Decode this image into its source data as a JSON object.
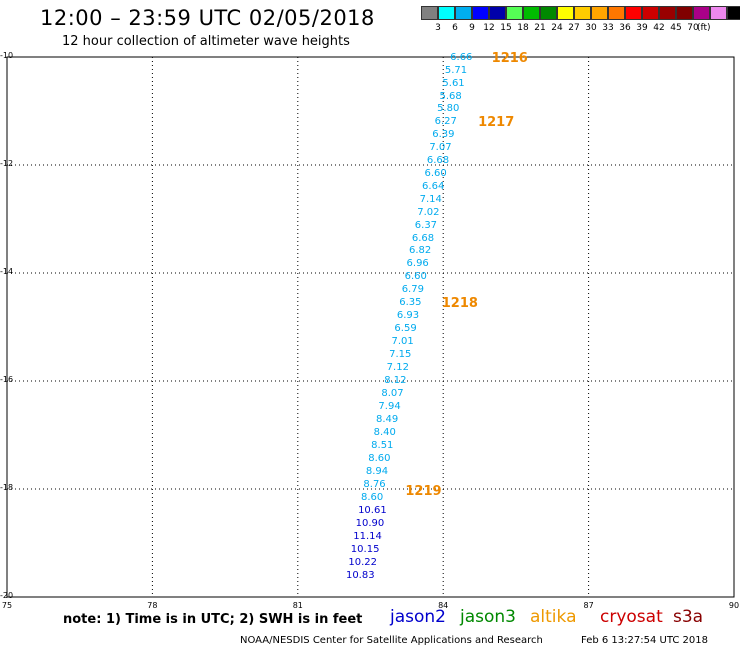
{
  "header": {
    "title": "12:00 – 23:59 UTC 02/05/2018",
    "subtitle": "12 hour collection of altimeter wave heights"
  },
  "colorbar": {
    "unit_label": "(ft)",
    "colors": [
      "#808080",
      "#00ffff",
      "#00aeef",
      "#0000ff",
      "#0000aa",
      "#55ff55",
      "#00bb00",
      "#008800",
      "#ffff00",
      "#ffcc00",
      "#ffa500",
      "#ff7700",
      "#ff0000",
      "#cc0000",
      "#990000",
      "#800000",
      "#aa0088",
      "#ee88ee",
      "#000000"
    ],
    "ticks": [
      "3",
      "6",
      "9",
      "12",
      "15",
      "18",
      "21",
      "24",
      "27",
      "30",
      "33",
      "36",
      "39",
      "42",
      "45",
      "70"
    ]
  },
  "axes": {
    "x_ticks": [
      "75",
      "78",
      "81",
      "84",
      "87",
      "90"
    ],
    "y_ticks": [
      "-10",
      "-12",
      "-14",
      "-16",
      "-18",
      "-20"
    ],
    "xlim": [
      75,
      90
    ],
    "ylim": [
      -20,
      -10
    ]
  },
  "track": {
    "color_light": "#00aaee",
    "color_dark": "#0000cc",
    "points": [
      {
        "lon": 84.35,
        "lat": -10.04,
        "swh": "6.66",
        "band": "light"
      },
      {
        "lon": 84.24,
        "lat": -10.27,
        "swh": "5.71",
        "band": "light"
      },
      {
        "lon": 84.19,
        "lat": -10.51,
        "swh": "5.61",
        "band": "light"
      },
      {
        "lon": 84.13,
        "lat": -10.75,
        "swh": "5.68",
        "band": "light"
      },
      {
        "lon": 84.08,
        "lat": -10.99,
        "swh": "5.80",
        "band": "light"
      },
      {
        "lon": 84.03,
        "lat": -11.22,
        "swh": "6.27",
        "band": "light"
      },
      {
        "lon": 83.98,
        "lat": -11.46,
        "swh": "6.39",
        "band": "light"
      },
      {
        "lon": 83.92,
        "lat": -11.7,
        "swh": "7.07",
        "band": "light"
      },
      {
        "lon": 83.87,
        "lat": -11.95,
        "swh": "6.68",
        "band": "light"
      },
      {
        "lon": 83.82,
        "lat": -12.18,
        "swh": "6.60",
        "band": "light"
      },
      {
        "lon": 83.77,
        "lat": -12.42,
        "swh": "6.64",
        "band": "light"
      },
      {
        "lon": 83.72,
        "lat": -12.66,
        "swh": "7.14",
        "band": "light"
      },
      {
        "lon": 83.67,
        "lat": -12.9,
        "swh": "7.02",
        "band": "light"
      },
      {
        "lon": 83.62,
        "lat": -13.14,
        "swh": "6.37",
        "band": "light"
      },
      {
        "lon": 83.56,
        "lat": -13.38,
        "swh": "6.68",
        "band": "light"
      },
      {
        "lon": 83.5,
        "lat": -13.62,
        "swh": "6.82",
        "band": "light"
      },
      {
        "lon": 83.45,
        "lat": -13.86,
        "swh": "6.96",
        "band": "light"
      },
      {
        "lon": 83.41,
        "lat": -14.1,
        "swh": "6.60",
        "band": "light"
      },
      {
        "lon": 83.35,
        "lat": -14.34,
        "swh": "6.79",
        "band": "light"
      },
      {
        "lon": 83.3,
        "lat": -14.58,
        "swh": "6.35",
        "band": "light"
      },
      {
        "lon": 83.25,
        "lat": -14.82,
        "swh": "6.93",
        "band": "light"
      },
      {
        "lon": 83.2,
        "lat": -15.06,
        "swh": "6.59",
        "band": "light"
      },
      {
        "lon": 83.14,
        "lat": -15.3,
        "swh": "7.01",
        "band": "light"
      },
      {
        "lon": 83.09,
        "lat": -15.54,
        "swh": "7.15",
        "band": "light"
      },
      {
        "lon": 83.04,
        "lat": -15.78,
        "swh": "7.12",
        "band": "light"
      },
      {
        "lon": 82.99,
        "lat": -16.02,
        "swh": "8.12",
        "band": "light"
      },
      {
        "lon": 82.93,
        "lat": -16.26,
        "swh": "8.07",
        "band": "light"
      },
      {
        "lon": 82.87,
        "lat": -16.5,
        "swh": "7.94",
        "band": "light"
      },
      {
        "lon": 82.82,
        "lat": -16.74,
        "swh": "8.49",
        "band": "light"
      },
      {
        "lon": 82.77,
        "lat": -16.98,
        "swh": "8.40",
        "band": "light"
      },
      {
        "lon": 82.72,
        "lat": -17.22,
        "swh": "8.51",
        "band": "light"
      },
      {
        "lon": 82.66,
        "lat": -17.46,
        "swh": "8.60",
        "band": "light"
      },
      {
        "lon": 82.61,
        "lat": -17.7,
        "swh": "8.94",
        "band": "light"
      },
      {
        "lon": 82.56,
        "lat": -17.94,
        "swh": "8.76",
        "band": "light"
      },
      {
        "lon": 82.51,
        "lat": -18.19,
        "swh": "8.60",
        "band": "light"
      },
      {
        "lon": 82.45,
        "lat": -18.43,
        "swh": "10.61",
        "band": "dark"
      },
      {
        "lon": 82.4,
        "lat": -18.67,
        "swh": "10.90",
        "band": "dark"
      },
      {
        "lon": 82.35,
        "lat": -18.91,
        "swh": "11.14",
        "band": "dark"
      },
      {
        "lon": 82.3,
        "lat": -19.15,
        "swh": "10.15",
        "band": "dark"
      },
      {
        "lon": 82.25,
        "lat": -19.39,
        "swh": "10.22",
        "band": "dark"
      },
      {
        "lon": 82.2,
        "lat": -19.63,
        "swh": "10.83",
        "band": "dark"
      }
    ],
    "time_labels": [
      {
        "lon": 85.0,
        "lat": -10.04,
        "text": "1216"
      },
      {
        "lon": 84.72,
        "lat": -11.22,
        "text": "1217"
      },
      {
        "lon": 83.97,
        "lat": -14.58,
        "text": "1218"
      },
      {
        "lon": 83.22,
        "lat": -18.05,
        "text": "1219"
      }
    ]
  },
  "footer": {
    "note": "note: 1) Time is in UTC; 2) SWH is in feet",
    "satellites": [
      {
        "name": "jason2",
        "color": "#0000cc"
      },
      {
        "name": "jason3",
        "color": "#008800"
      },
      {
        "name": "altika",
        "color": "#ee9900"
      },
      {
        "name": "cryosat",
        "color": "#cc0000"
      },
      {
        "name": "s3a",
        "color": "#880000"
      }
    ],
    "credit": "NOAA/NESDIS Center for Satellite Applications and Research",
    "timestamp": "Feb  6 13:27:54 UTC 2018"
  }
}
